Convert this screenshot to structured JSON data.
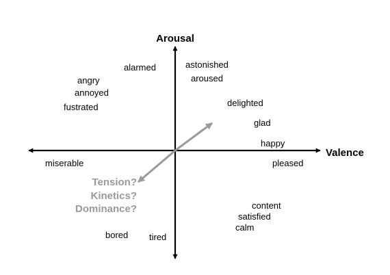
{
  "axes": {
    "vertical_label": "Arousal",
    "horizontal_label": "Valence"
  },
  "emotions": {
    "alarmed": "alarmed",
    "astonished": "astonished",
    "aroused": "aroused",
    "angry": "angry",
    "annoyed": "annoyed",
    "fustrated": "fustrated",
    "delighted": "delighted",
    "glad": "glad",
    "happy": "happy",
    "miserable": "miserable",
    "pleased": "pleased",
    "content": "content",
    "satisfied": "satisfied",
    "calm": "calm",
    "bored": "bored",
    "tired": "tired"
  },
  "extra_dimensions": {
    "tension": "Tension?",
    "kinetics": "Kinetics?",
    "dominance": "Dominance?"
  },
  "colors": {
    "axis": "#000000",
    "diagonal_axis": "#9a9a9a",
    "question_text": "#9a9a9a"
  }
}
